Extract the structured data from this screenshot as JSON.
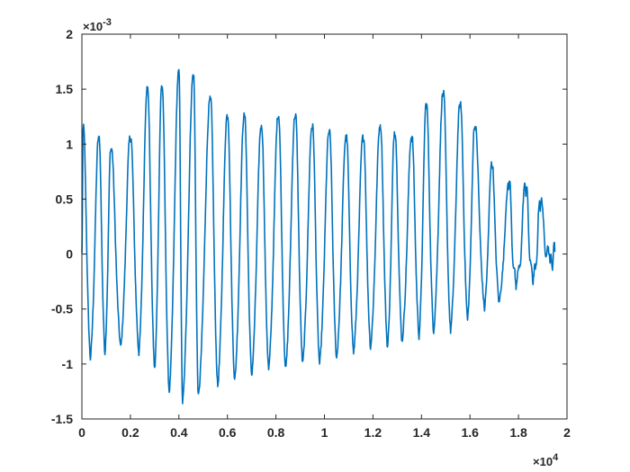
{
  "chart_data": {
    "type": "line",
    "title": "",
    "xlabel": "",
    "ylabel": "",
    "x_multiplier": "×10",
    "x_exponent": "4",
    "y_multiplier": "×10",
    "y_exponent": "-3",
    "xlim": [
      0,
      2
    ],
    "ylim": [
      -1.5,
      2
    ],
    "x_ticks": [
      0,
      0.2,
      0.4,
      0.6,
      0.8,
      1,
      1.2,
      1.4,
      1.6,
      1.8,
      2
    ],
    "x_tick_labels": [
      "0",
      "0.2",
      "0.4",
      "0.6",
      "0.8",
      "1",
      "1.2",
      "1.4",
      "1.6",
      "1.8",
      "2"
    ],
    "y_ticks": [
      -1.5,
      -1,
      -0.5,
      0,
      0.5,
      1,
      1.5,
      2
    ],
    "y_tick_labels": [
      "-1.5",
      "-1",
      "-0.5",
      "0",
      "0.5",
      "1",
      "1.5",
      "2"
    ],
    "grid": false,
    "box": true,
    "series_color": "#0072BD",
    "axis_color": "#262626",
    "series": [
      {
        "x_start": 0,
        "x_end": 1.95,
        "peaks": [
          {
            "x": 0.005,
            "y": 1.15
          },
          {
            "x": 0.07,
            "y": 1.05
          },
          {
            "x": 0.12,
            "y": 0.95
          },
          {
            "x": 0.2,
            "y": 1.05
          },
          {
            "x": 0.27,
            "y": 1.5
          },
          {
            "x": 0.33,
            "y": 1.52
          },
          {
            "x": 0.4,
            "y": 1.65
          },
          {
            "x": 0.46,
            "y": 1.62
          },
          {
            "x": 0.53,
            "y": 1.4
          },
          {
            "x": 0.6,
            "y": 1.25
          },
          {
            "x": 0.67,
            "y": 1.25
          },
          {
            "x": 0.74,
            "y": 1.15
          },
          {
            "x": 0.81,
            "y": 1.25
          },
          {
            "x": 0.88,
            "y": 1.25
          },
          {
            "x": 0.95,
            "y": 1.15
          },
          {
            "x": 1.02,
            "y": 1.1
          },
          {
            "x": 1.09,
            "y": 1.05
          },
          {
            "x": 1.16,
            "y": 1.05
          },
          {
            "x": 1.23,
            "y": 1.15
          },
          {
            "x": 1.29,
            "y": 1.1
          },
          {
            "x": 1.36,
            "y": 1.05
          },
          {
            "x": 1.42,
            "y": 1.35
          },
          {
            "x": 1.49,
            "y": 1.45
          },
          {
            "x": 1.56,
            "y": 1.35
          },
          {
            "x": 1.62,
            "y": 1.15
          },
          {
            "x": 1.69,
            "y": 0.8
          },
          {
            "x": 1.76,
            "y": 0.6
          },
          {
            "x": 1.83,
            "y": 0.55
          },
          {
            "x": 1.89,
            "y": 0.4
          }
        ],
        "troughs": [
          {
            "x": 0.035,
            "y": -0.95
          },
          {
            "x": 0.095,
            "y": -0.9
          },
          {
            "x": 0.16,
            "y": -0.85
          },
          {
            "x": 0.235,
            "y": -0.9
          },
          {
            "x": 0.3,
            "y": -1.05
          },
          {
            "x": 0.36,
            "y": -1.25
          },
          {
            "x": 0.415,
            "y": -1.35
          },
          {
            "x": 0.48,
            "y": -1.3
          },
          {
            "x": 0.56,
            "y": -1.2
          },
          {
            "x": 0.63,
            "y": -1.15
          },
          {
            "x": 0.7,
            "y": -1.1
          },
          {
            "x": 0.77,
            "y": -1.05
          },
          {
            "x": 0.84,
            "y": -1.05
          },
          {
            "x": 0.91,
            "y": -1.0
          },
          {
            "x": 0.98,
            "y": -1.0
          },
          {
            "x": 1.05,
            "y": -0.95
          },
          {
            "x": 1.12,
            "y": -0.9
          },
          {
            "x": 1.19,
            "y": -0.85
          },
          {
            "x": 1.26,
            "y": -0.85
          },
          {
            "x": 1.32,
            "y": -0.8
          },
          {
            "x": 1.39,
            "y": -0.75
          },
          {
            "x": 1.45,
            "y": -0.7
          },
          {
            "x": 1.52,
            "y": -0.7
          },
          {
            "x": 1.59,
            "y": -0.6
          },
          {
            "x": 1.66,
            "y": -0.5
          },
          {
            "x": 1.72,
            "y": -0.45
          },
          {
            "x": 1.79,
            "y": -0.35
          },
          {
            "x": 1.86,
            "y": -0.3
          },
          {
            "x": 1.93,
            "y": -0.1
          }
        ],
        "end_value": 0.02
      }
    ]
  }
}
